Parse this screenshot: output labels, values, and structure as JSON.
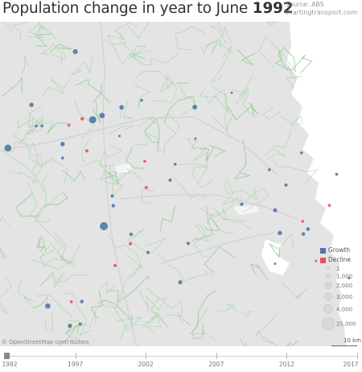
{
  "title": {
    "prefix": "Population change in year to June ",
    "year": "1992"
  },
  "source": {
    "line1": "Source: ABS",
    "line2": "chartingtransport.com"
  },
  "map": {
    "attribution": "© OpenStreetMap contributors",
    "scale_label": "10 km"
  },
  "legend": {
    "growth_label": "Growth",
    "decline_label": "Decline",
    "sizes": [
      "1",
      "1,000",
      "2,000",
      "3,000",
      "4,000",
      "25,000"
    ]
  },
  "timeline": {
    "labels": [
      "1992",
      "1997",
      "2002",
      "2007",
      "2012",
      "2017"
    ]
  },
  "colors": {
    "growth": "#4e79a7",
    "decline": "#e15759",
    "map_bg": "#e4e4e4",
    "roads": "#8fcf8f"
  },
  "chart_data": {
    "type": "scatter",
    "title": "Population change in year to June 1992",
    "subtitle": "Source: ABS chartingtransport.com",
    "series": [
      {
        "name": "Growth",
        "color": "#4e79a7"
      },
      {
        "name": "Decline",
        "color": "#e15759"
      }
    ],
    "size_legend": [
      1,
      1000,
      2000,
      3000,
      4000,
      25000
    ],
    "year_slider": {
      "min": 1992,
      "max": 2017,
      "selected": 1992,
      "ticks": [
        1992,
        1997,
        2002,
        2007,
        2012,
        2017
      ]
    },
    "points": [
      {
        "x": 0.208,
        "y": 0.092,
        "v": 1200,
        "s": "Growth"
      },
      {
        "x": 0.087,
        "y": 0.256,
        "v": 900,
        "s": "Growth"
      },
      {
        "x": 0.256,
        "y": 0.302,
        "v": 2600,
        "s": "Growth"
      },
      {
        "x": 0.282,
        "y": 0.289,
        "v": 1500,
        "s": "Growth"
      },
      {
        "x": 0.227,
        "y": 0.299,
        "v": 600,
        "s": "Decline"
      },
      {
        "x": 0.336,
        "y": 0.264,
        "v": 1000,
        "s": "Growth"
      },
      {
        "x": 0.538,
        "y": 0.263,
        "v": 1100,
        "s": "Growth"
      },
      {
        "x": 0.022,
        "y": 0.389,
        "v": 2400,
        "s": "Growth"
      },
      {
        "x": 0.173,
        "y": 0.377,
        "v": 1000,
        "s": "Growth"
      },
      {
        "x": 0.287,
        "y": 0.63,
        "v": 3200,
        "s": "Growth"
      },
      {
        "x": 0.313,
        "y": 0.567,
        "v": 600,
        "s": "Growth"
      },
      {
        "x": 0.76,
        "y": 0.581,
        "v": 800,
        "s": "Growth"
      },
      {
        "x": 0.773,
        "y": 0.651,
        "v": 900,
        "s": "Growth"
      },
      {
        "x": 0.836,
        "y": 0.615,
        "v": 400,
        "s": "Decline"
      },
      {
        "x": 0.851,
        "y": 0.639,
        "v": 700,
        "s": "Growth"
      },
      {
        "x": 0.132,
        "y": 0.876,
        "v": 1400,
        "s": "Growth"
      },
      {
        "x": 0.498,
        "y": 0.803,
        "v": 800,
        "s": "Growth"
      },
      {
        "x": 0.226,
        "y": 0.862,
        "v": 600,
        "s": "Growth"
      },
      {
        "x": 0.193,
        "y": 0.937,
        "v": 900,
        "s": "Growth"
      },
      {
        "x": 0.222,
        "y": 0.932,
        "v": 500,
        "s": "Growth"
      },
      {
        "x": 0.362,
        "y": 0.655,
        "v": 600,
        "s": "Growth"
      },
      {
        "x": 0.36,
        "y": 0.684,
        "v": 500,
        "s": "Decline"
      },
      {
        "x": 0.409,
        "y": 0.711,
        "v": 500,
        "s": "Growth"
      },
      {
        "x": 0.52,
        "y": 0.683,
        "v": 500,
        "s": "Growth"
      },
      {
        "x": 0.47,
        "y": 0.488,
        "v": 500,
        "s": "Growth"
      },
      {
        "x": 0.24,
        "y": 0.398,
        "v": 500,
        "s": "Decline"
      },
      {
        "x": 0.31,
        "y": 0.537,
        "v": 500,
        "s": "Growth"
      },
      {
        "x": 0.404,
        "y": 0.511,
        "v": 500,
        "s": "Decline"
      },
      {
        "x": 0.318,
        "y": 0.751,
        "v": 500,
        "s": "Decline"
      },
      {
        "x": 0.197,
        "y": 0.863,
        "v": 400,
        "s": "Decline"
      },
      {
        "x": 0.668,
        "y": 0.562,
        "v": 500,
        "s": "Growth"
      },
      {
        "x": 0.838,
        "y": 0.654,
        "v": 600,
        "s": "Growth"
      },
      {
        "x": 0.79,
        "y": 0.503,
        "v": 500,
        "s": "Growth"
      },
      {
        "x": 0.744,
        "y": 0.456,
        "v": 400,
        "s": "Growth"
      },
      {
        "x": 0.833,
        "y": 0.404,
        "v": 400,
        "s": "Growth"
      },
      {
        "x": 0.1,
        "y": 0.321,
        "v": 400,
        "s": "Growth"
      },
      {
        "x": 0.19,
        "y": 0.319,
        "v": 400,
        "s": "Decline"
      },
      {
        "x": 0.116,
        "y": 0.321,
        "v": 400,
        "s": "Growth"
      },
      {
        "x": 0.173,
        "y": 0.42,
        "v": 400,
        "s": "Growth"
      },
      {
        "x": 0.484,
        "y": 0.439,
        "v": 400,
        "s": "Growth"
      },
      {
        "x": 0.4,
        "y": 0.43,
        "v": 400,
        "s": "Decline"
      },
      {
        "x": 0.391,
        "y": 0.242,
        "v": 400,
        "s": "Growth"
      },
      {
        "x": 0.64,
        "y": 0.219,
        "v": 300,
        "s": "Growth"
      },
      {
        "x": 0.33,
        "y": 0.352,
        "v": 300,
        "s": "Growth"
      },
      {
        "x": 0.54,
        "y": 0.36,
        "v": 300,
        "s": "Growth"
      },
      {
        "x": 0.93,
        "y": 0.47,
        "v": 400,
        "s": "Growth"
      },
      {
        "x": 0.91,
        "y": 0.566,
        "v": 400,
        "s": "Decline"
      },
      {
        "x": 0.964,
        "y": 0.79,
        "v": 300,
        "s": "Growth"
      },
      {
        "x": 0.873,
        "y": 0.737,
        "v": 300,
        "s": "Decline"
      },
      {
        "x": 0.76,
        "y": 0.746,
        "v": 300,
        "s": "Growth"
      }
    ]
  }
}
